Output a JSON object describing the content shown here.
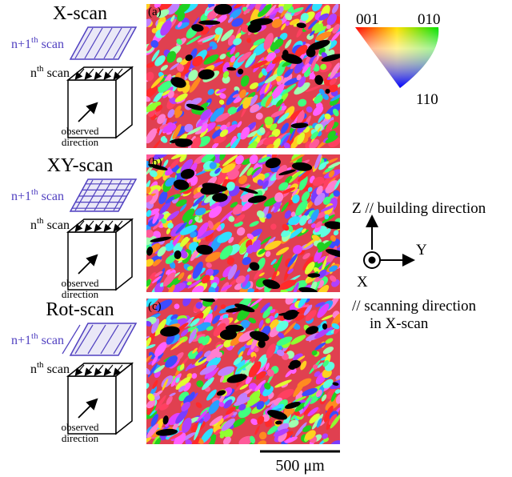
{
  "figure": {
    "panels": [
      {
        "title": "X-scan",
        "label": "(a)",
        "upper_scan": {
          "main": "n+1",
          "sup": "th",
          "suffix": "scan"
        },
        "lower_scan": {
          "main": "n",
          "sup": "th",
          "suffix": "scan"
        },
        "observed": [
          "observed",
          "direction"
        ]
      },
      {
        "title": "XY-scan",
        "label": "(b)",
        "upper_scan": {
          "main": "n+1",
          "sup": "th",
          "suffix": "scan"
        },
        "lower_scan": {
          "main": "n",
          "sup": "th",
          "suffix": "scan"
        },
        "observed": [
          "observed",
          "direction"
        ]
      },
      {
        "title": "Rot-scan",
        "label": "(c)",
        "upper_scan": {
          "main": "n+1",
          "sup": "th",
          "suffix": "scan"
        },
        "lower_scan": {
          "main": "n",
          "sup": "th",
          "suffix": "scan"
        },
        "observed": [
          "observed",
          "direction"
        ]
      }
    ],
    "ipf": {
      "corners": [
        "001",
        "010",
        "110"
      ]
    },
    "axes": {
      "z": "Z // building direction",
      "y": "Y",
      "x": "X",
      "x_note": [
        "// scanning direction",
        "in X-scan"
      ]
    },
    "scale_bar": "500 μm"
  }
}
